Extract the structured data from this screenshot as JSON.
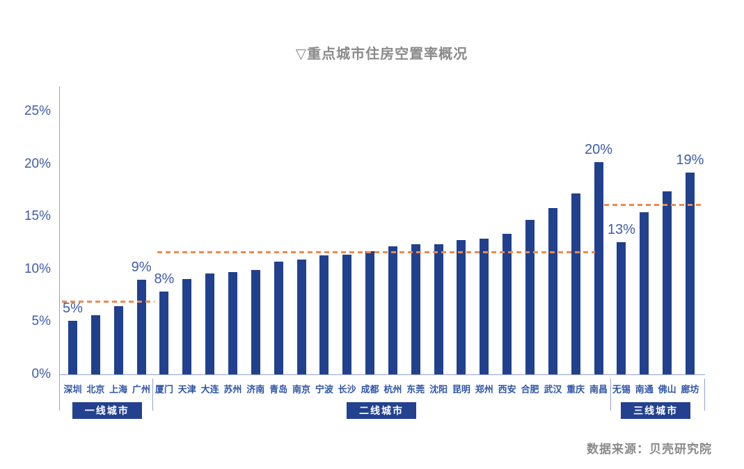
{
  "title": "▽重点城市住房空置率概况",
  "source": "数据来源：贝壳研究院",
  "chart_data": {
    "type": "bar",
    "title": "重点城市住房空置率概况",
    "xlabel": "",
    "ylabel": "住房空置率",
    "ylim": [
      0,
      27.4
    ],
    "grid": false,
    "bar_color": "#21408e",
    "average_line_color": "#ee8a4c",
    "axis_color": "#93a3cf",
    "text_color_blue": "#3f5caa",
    "group_box_color": "#24418f",
    "y_ticks": [
      {
        "label": "0%",
        "value": 0
      },
      {
        "label": "5%",
        "value": 5
      },
      {
        "label": "10%",
        "value": 10
      },
      {
        "label": "15%",
        "value": 15
      },
      {
        "label": "20%",
        "value": 20
      },
      {
        "label": "25%",
        "value": 25
      }
    ],
    "groups": [
      {
        "label": "一线城市",
        "average_line_value": 6.9,
        "cities": [
          {
            "name": "深圳",
            "value": 5.1,
            "label": "5%"
          },
          {
            "name": "北京",
            "value": 5.6
          },
          {
            "name": "上海",
            "value": 6.5
          },
          {
            "name": "广州",
            "value": 9.0,
            "label": "9%"
          }
        ]
      },
      {
        "label": "二线城市",
        "average_line_value": 11.6,
        "cities": [
          {
            "name": "厦门",
            "value": 7.9,
            "label": "8%"
          },
          {
            "name": "天津",
            "value": 9.1
          },
          {
            "name": "大连",
            "value": 9.6
          },
          {
            "name": "苏州",
            "value": 9.7
          },
          {
            "name": "济南",
            "value": 9.9
          },
          {
            "name": "青岛",
            "value": 10.7
          },
          {
            "name": "南京",
            "value": 10.9
          },
          {
            "name": "宁波",
            "value": 11.3
          },
          {
            "name": "长沙",
            "value": 11.4
          },
          {
            "name": "成都",
            "value": 11.7
          },
          {
            "name": "杭州",
            "value": 12.2
          },
          {
            "name": "东莞",
            "value": 12.4
          },
          {
            "name": "沈阳",
            "value": 12.4
          },
          {
            "name": "昆明",
            "value": 12.8
          },
          {
            "name": "郑州",
            "value": 12.9
          },
          {
            "name": "西安",
            "value": 13.4
          },
          {
            "name": "合肥",
            "value": 14.7
          },
          {
            "name": "武汉",
            "value": 15.8
          },
          {
            "name": "重庆",
            "value": 17.2
          },
          {
            "name": "南昌",
            "value": 20.2,
            "label": "20%"
          }
        ]
      },
      {
        "label": "三线城市",
        "average_line_value": 16.1,
        "cities": [
          {
            "name": "无锡",
            "value": 12.6,
            "label": "13%"
          },
          {
            "name": "南通",
            "value": 15.4
          },
          {
            "name": "佛山",
            "value": 17.4
          },
          {
            "name": "廊坊",
            "value": 19.2,
            "label": "19%"
          }
        ]
      }
    ]
  }
}
